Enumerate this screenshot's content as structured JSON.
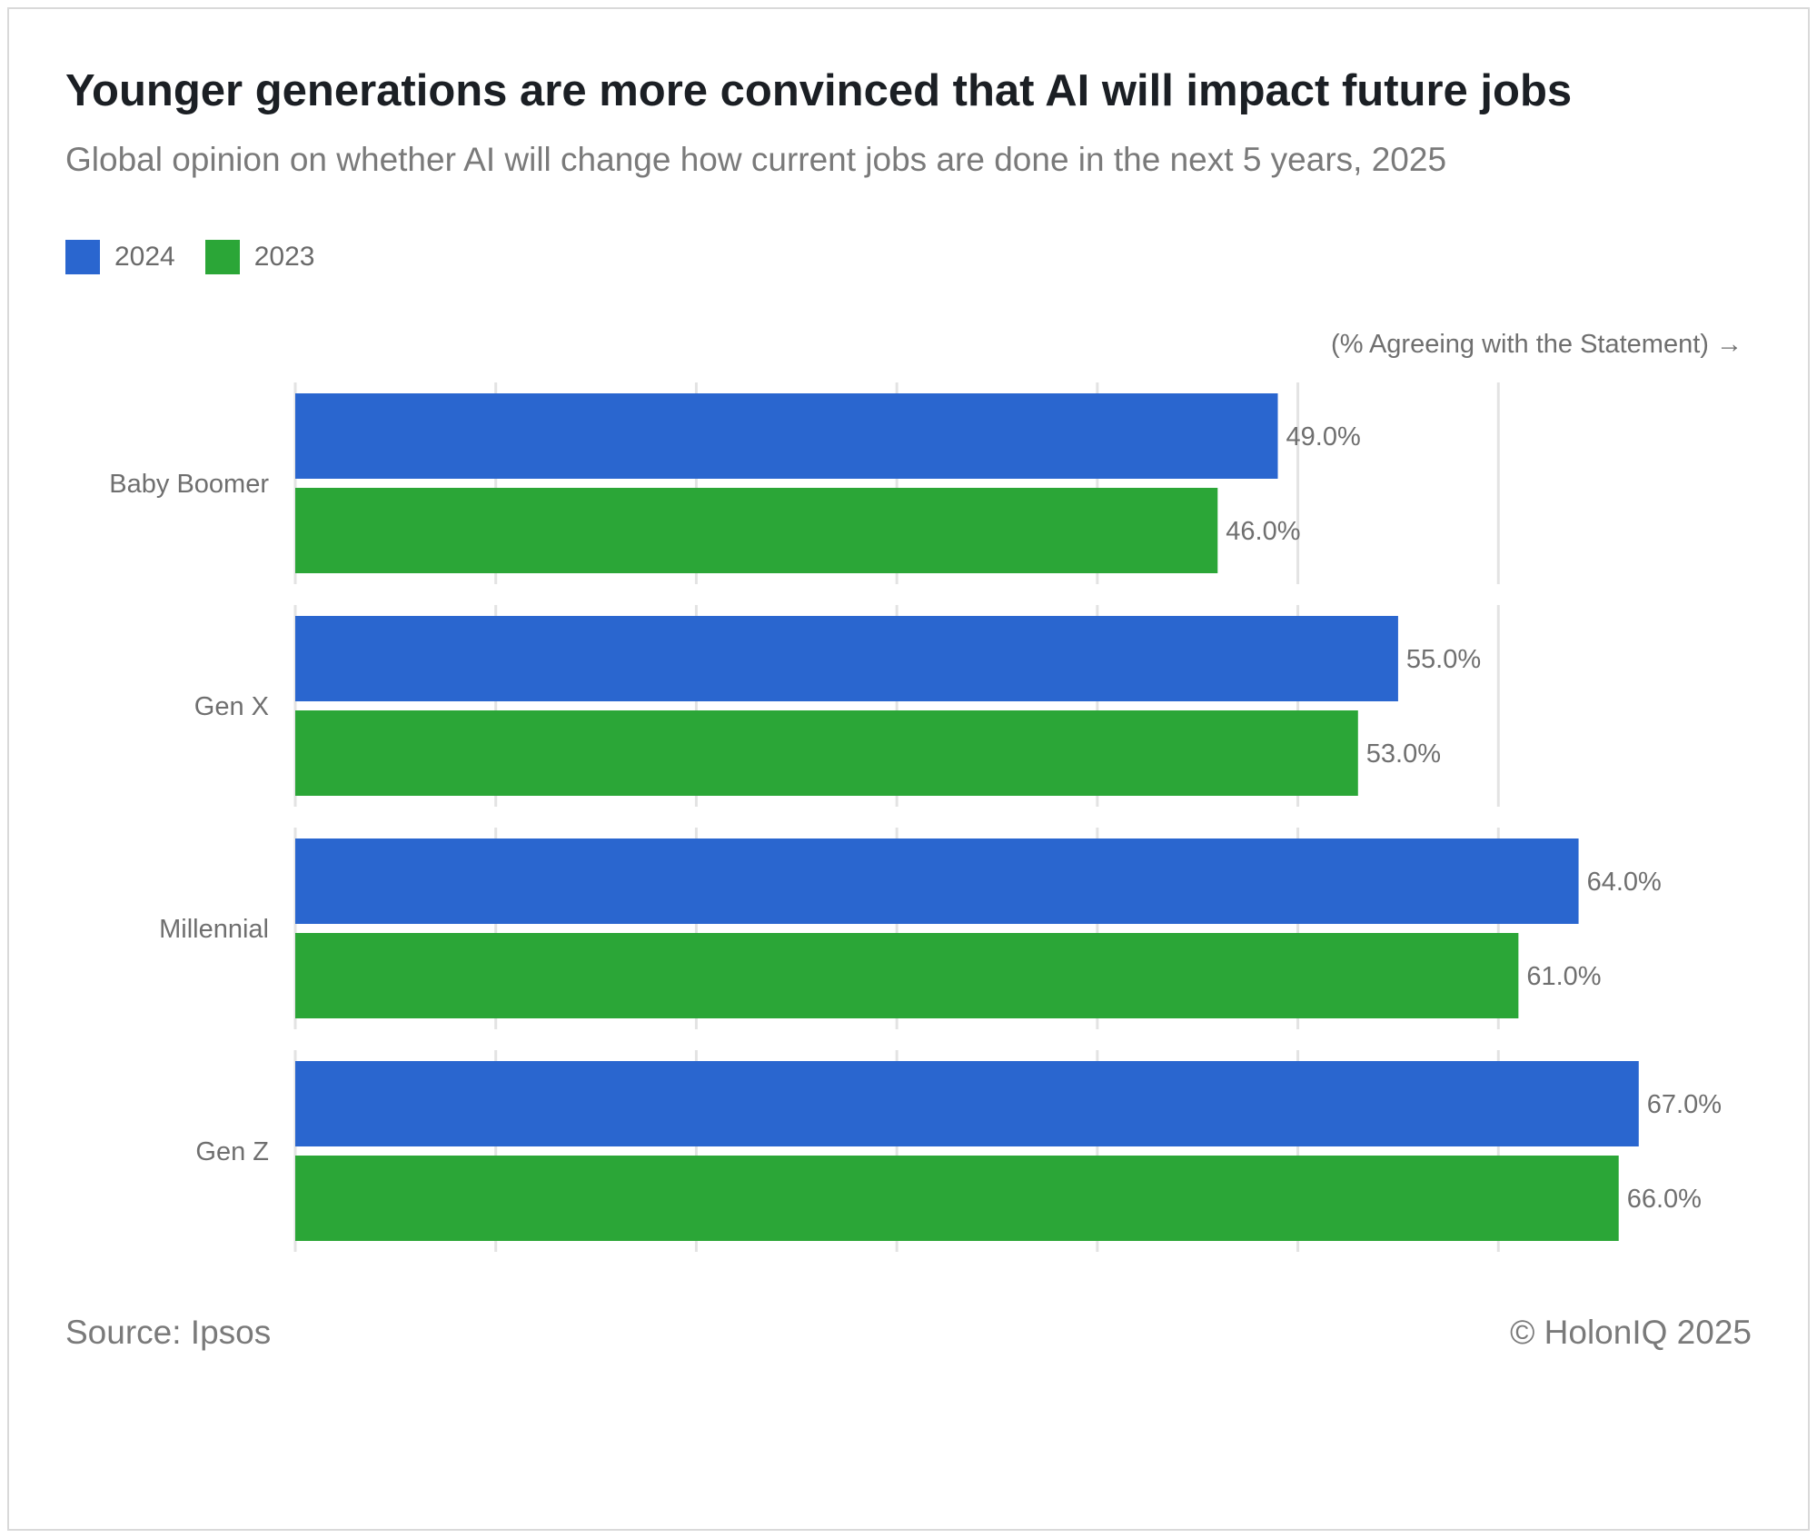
{
  "title": "Younger generations are more convinced that AI will impact future jobs",
  "subtitle": "Global opinion on whether AI will change how current jobs are done in the next 5 years, 2025",
  "legend": [
    {
      "label": "2024",
      "color": "#2a66cf"
    },
    {
      "label": "2023",
      "color": "#2ba637"
    }
  ],
  "source": "Source: Ipsos",
  "copyright": "© HolonIQ 2025",
  "chart_data": {
    "type": "bar",
    "orientation": "horizontal",
    "title": "Younger generations are more convinced that AI will impact future jobs",
    "xlabel": "(% Agreeing with the Statement) →",
    "ylabel": "",
    "categories": [
      "Baby Boomer",
      "Gen X",
      "Millennial",
      "Gen Z"
    ],
    "series": [
      {
        "name": "2024",
        "color": "#2a66cf",
        "values": [
          49.0,
          55.0,
          64.0,
          67.0
        ],
        "labels": [
          "49.0%",
          "55.0%",
          "64.0%",
          "67.0%"
        ]
      },
      {
        "name": "2023",
        "color": "#2ba637",
        "values": [
          46.0,
          53.0,
          61.0,
          66.0
        ],
        "labels": [
          "46.0%",
          "53.0%",
          "61.0%",
          "66.0%"
        ]
      }
    ],
    "xlim": [
      0,
      70
    ],
    "grid": true,
    "legend_position": "top-left"
  }
}
